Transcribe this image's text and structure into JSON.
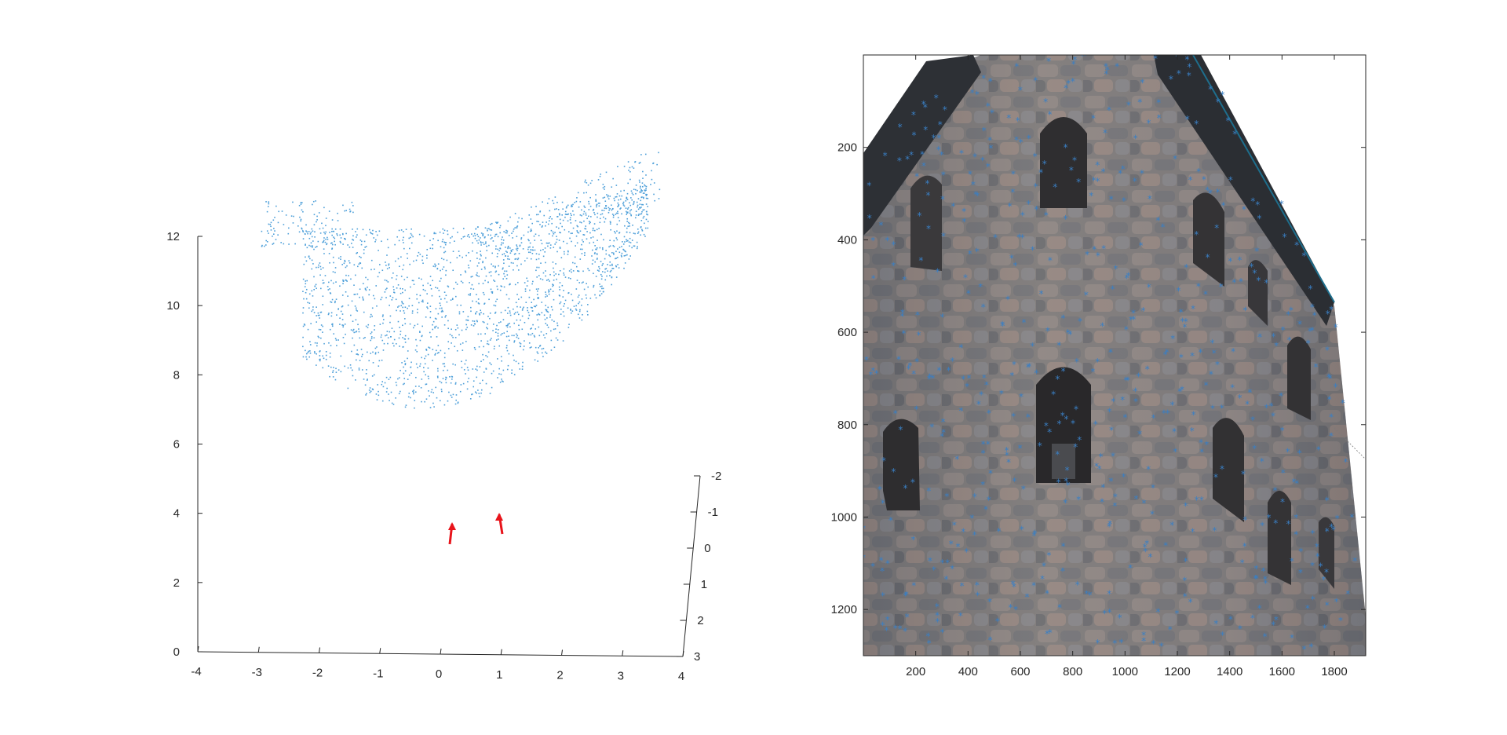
{
  "chart_data": [
    {
      "type": "scatter3d",
      "title": "",
      "xlabel": "",
      "ylabel": "",
      "zlabel": "",
      "xlim": [
        -4,
        4
      ],
      "ylim": [
        -2,
        3
      ],
      "zlim": [
        0,
        12
      ],
      "x_ticks": [
        "-4",
        "-3",
        "-2",
        "-1",
        "0",
        "1",
        "2",
        "3",
        "4"
      ],
      "y_ticks": [
        "-2",
        "-1",
        "0",
        "1",
        "2",
        "3"
      ],
      "z_ticks": [
        "0",
        "2",
        "4",
        "6",
        "8",
        "10",
        "12"
      ],
      "point_color": "#4d9fd9",
      "cameras": [
        {
          "name": "",
          "x": -0.2,
          "y": 1.0,
          "z": 3.5
        },
        {
          "name": "",
          "x": 0.8,
          "y": 1.0,
          "z": 3.8
        }
      ],
      "camera_color": "#e8141b",
      "grid": false
    },
    {
      "type": "image_with_points",
      "title": "",
      "xlim": [
        0,
        1920
      ],
      "ylim": [
        1300,
        0
      ],
      "x_ticks": [
        "200",
        "400",
        "600",
        "800",
        "1000",
        "1200",
        "1400",
        "1600",
        "1800"
      ],
      "y_ticks": [
        "200",
        "400",
        "600",
        "800",
        "1000",
        "1200"
      ],
      "marker": "*",
      "marker_color": "#3a7fc4",
      "image_description": "stone tower"
    }
  ]
}
